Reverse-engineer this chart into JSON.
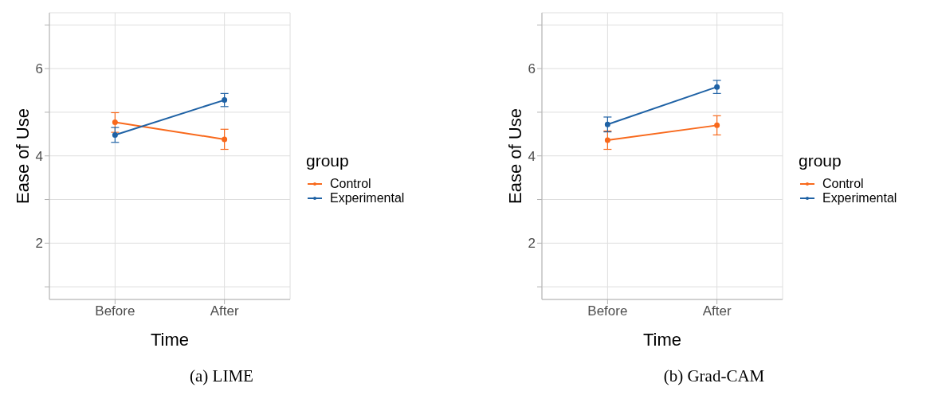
{
  "chart_data": [
    {
      "type": "line",
      "title": "(a) LIME",
      "xlabel": "Time",
      "ylabel": "Ease of Use",
      "legend_title": "group",
      "categories": [
        "Before",
        "After"
      ],
      "ylim": [
        0.71,
        7.28
      ],
      "yticks": [
        {
          "value": 1,
          "label": null
        },
        2,
        {
          "value": 3,
          "label": null
        },
        4,
        {
          "value": 5,
          "label": null
        },
        6,
        {
          "value": 7,
          "label": null
        }
      ],
      "grid": true,
      "legend": "right",
      "marker": "circle",
      "line_style": "solid",
      "series": [
        {
          "name": "Control",
          "color": "#f8691c",
          "values": [
            4.77,
            4.38
          ],
          "errors": [
            [
              4.54,
              4.99
            ],
            [
              4.15,
              4.61
            ]
          ]
        },
        {
          "name": "Experimental",
          "color": "#1f62a5",
          "values": [
            4.48,
            5.28
          ],
          "errors": [
            [
              4.31,
              4.65
            ],
            [
              5.13,
              5.43
            ]
          ]
        }
      ]
    },
    {
      "type": "line",
      "title": "(b) Grad-CAM",
      "xlabel": "Time",
      "ylabel": "Ease of Use",
      "legend_title": "group",
      "categories": [
        "Before",
        "After"
      ],
      "ylim": [
        0.71,
        7.28
      ],
      "yticks": [
        {
          "value": 1,
          "label": null
        },
        2,
        {
          "value": 3,
          "label": null
        },
        4,
        {
          "value": 5,
          "label": null
        },
        6,
        {
          "value": 7,
          "label": null
        }
      ],
      "grid": true,
      "legend": "right",
      "marker": "circle",
      "line_style": "solid",
      "series": [
        {
          "name": "Control",
          "color": "#f8691c",
          "values": [
            4.36,
            4.7
          ],
          "errors": [
            [
              4.15,
              4.57
            ],
            [
              4.48,
              4.92
            ]
          ]
        },
        {
          "name": "Experimental",
          "color": "#1f62a5",
          "values": [
            4.72,
            5.58
          ],
          "errors": [
            [
              4.55,
              4.89
            ],
            [
              5.43,
              5.73
            ]
          ]
        }
      ]
    }
  ]
}
